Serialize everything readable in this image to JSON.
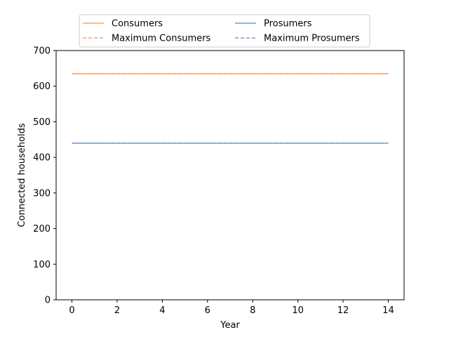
{
  "chart_data": {
    "type": "line",
    "xlabel": "Year",
    "ylabel": "Connected households",
    "xlim": [
      -0.7,
      14.7
    ],
    "ylim": [
      0,
      700
    ],
    "xticks": [
      "0",
      "2",
      "4",
      "6",
      "8",
      "10",
      "12",
      "14"
    ],
    "yticks": [
      "0",
      "100",
      "200",
      "300",
      "400",
      "500",
      "600",
      "700"
    ],
    "grid": false,
    "legend_position": "top-center",
    "x": [
      0,
      1,
      2,
      3,
      4,
      5,
      6,
      7,
      8,
      9,
      10,
      11,
      12,
      13,
      14
    ],
    "series": [
      {
        "name": "Consumers",
        "style": "solid",
        "color": "#f4a571",
        "values": [
          635,
          635,
          635,
          635,
          635,
          635,
          635,
          635,
          635,
          635,
          635,
          635,
          635,
          635,
          635
        ]
      },
      {
        "name": "Maximum Consumers",
        "style": "dashed",
        "color": "#f4a571",
        "values": [
          635,
          635,
          635,
          635,
          635,
          635,
          635,
          635,
          635,
          635,
          635,
          635,
          635,
          635,
          635
        ]
      },
      {
        "name": "Prosumers",
        "style": "solid",
        "color": "#7b9bc4",
        "values": [
          440,
          440,
          440,
          440,
          440,
          440,
          440,
          440,
          440,
          440,
          440,
          440,
          440,
          440,
          440
        ]
      },
      {
        "name": "Maximum Prosumers",
        "style": "dashed",
        "color": "#7b9bc4",
        "values": [
          440,
          440,
          440,
          440,
          440,
          440,
          440,
          440,
          440,
          440,
          440,
          440,
          440,
          440,
          440
        ]
      }
    ]
  }
}
